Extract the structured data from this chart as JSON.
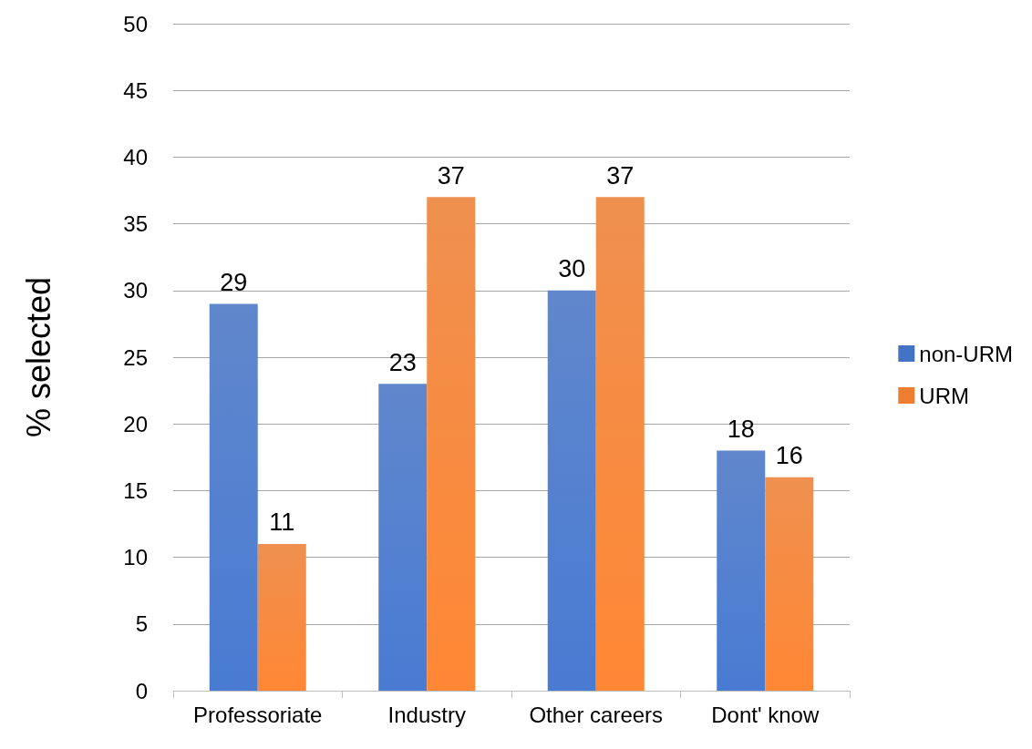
{
  "chart_data": {
    "type": "bar",
    "ylabel": "% selected",
    "categories": [
      "Professoriate",
      "Industry",
      "Other careers",
      "Dont' know"
    ],
    "series": [
      {
        "name": "non-URM",
        "color": "#4472c4",
        "values": [
          29,
          23,
          30,
          18
        ]
      },
      {
        "name": "URM",
        "color": "#ed7d31",
        "values": [
          11,
          37,
          37,
          16
        ]
      }
    ],
    "ylim": [
      0,
      50
    ],
    "yticks": [
      0,
      5,
      10,
      15,
      20,
      25,
      30,
      35,
      40,
      45,
      50
    ],
    "grid": "y",
    "legend": "right",
    "data_labels": true
  }
}
